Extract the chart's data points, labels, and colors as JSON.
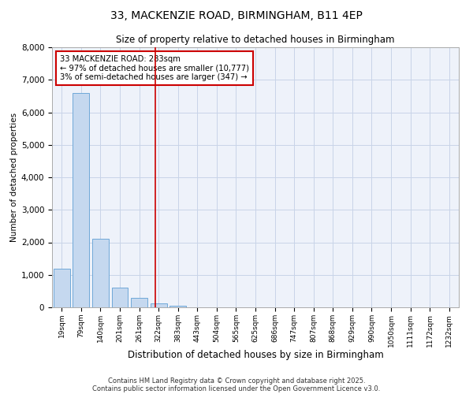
{
  "title1": "33, MACKENZIE ROAD, BIRMINGHAM, B11 4EP",
  "title2": "Size of property relative to detached houses in Birmingham",
  "xlabel": "Distribution of detached houses by size in Birmingham",
  "ylabel": "Number of detached properties",
  "categories": [
    "19sqm",
    "79sqm",
    "140sqm",
    "201sqm",
    "261sqm",
    "322sqm",
    "383sqm",
    "443sqm",
    "504sqm",
    "565sqm",
    "625sqm",
    "686sqm",
    "747sqm",
    "807sqm",
    "868sqm",
    "929sqm",
    "990sqm",
    "1050sqm",
    "1111sqm",
    "1172sqm",
    "1232sqm"
  ],
  "values": [
    1200,
    6600,
    2100,
    600,
    280,
    120,
    60,
    3,
    3,
    3,
    3,
    0,
    0,
    0,
    0,
    0,
    0,
    0,
    0,
    0,
    0
  ],
  "bar_color": "#c5d8ef",
  "bar_edge_color": "#6fa8d8",
  "vline_color": "#cc0000",
  "vline_pos": 4.85,
  "annotation_text": "33 MACKENZIE ROAD: 283sqm\n← 97% of detached houses are smaller (10,777)\n3% of semi-detached houses are larger (347) →",
  "annotation_box_color": "#cc0000",
  "annotation_text_color": "#000000",
  "ylim": [
    0,
    8000
  ],
  "yticks": [
    0,
    1000,
    2000,
    3000,
    4000,
    5000,
    6000,
    7000,
    8000
  ],
  "grid_color": "#c8d4e8",
  "background_color": "#eef2fa",
  "footer1": "Contains HM Land Registry data © Crown copyright and database right 2025.",
  "footer2": "Contains public sector information licensed under the Open Government Licence v3.0."
}
